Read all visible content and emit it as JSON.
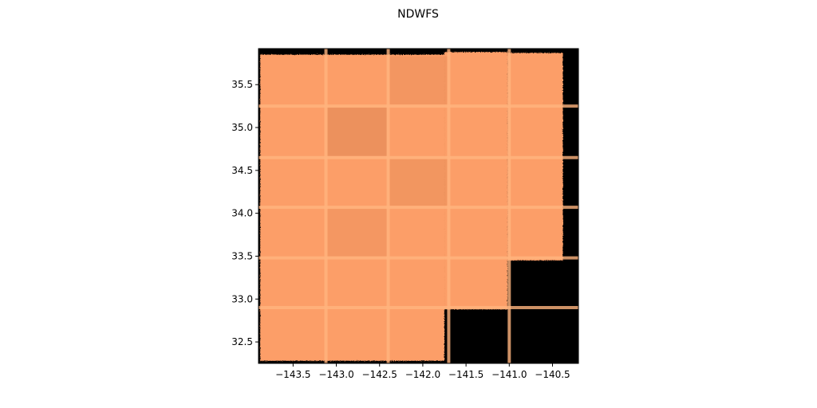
{
  "chart_data": {
    "type": "heatmap",
    "title": "NDWFS",
    "xlabel": "",
    "ylabel": "",
    "xlim": [
      -143.9,
      -140.2
    ],
    "ylim": [
      32.25,
      35.92
    ],
    "xticks": [
      -143.5,
      -143.0,
      -142.5,
      -142.0,
      -141.5,
      -141.0,
      -140.5
    ],
    "xtick_labels": [
      "−143.5",
      "−143.0",
      "−142.5",
      "−142.0",
      "−141.5",
      "−141.0",
      "−140.5"
    ],
    "yticks": [
      32.5,
      33.0,
      33.5,
      34.0,
      34.5,
      35.0,
      35.5
    ],
    "ytick_labels": [
      "32.5",
      "33.0",
      "33.5",
      "34.0",
      "34.5",
      "35.0",
      "35.5"
    ],
    "background_color": "#000000",
    "coverage_color": "#fc9e67",
    "grid": false,
    "coverage_columns": [
      {
        "x_min": -143.88,
        "x_max": -141.75,
        "y_min": 32.28,
        "y_max": 35.85
      },
      {
        "x_min": -141.75,
        "x_max": -141.02,
        "y_min": 32.88,
        "y_max": 35.88
      },
      {
        "x_min": -141.02,
        "x_max": -140.38,
        "y_min": 33.45,
        "y_max": 35.87
      }
    ],
    "tile_boundaries_x": [
      -143.12,
      -142.4,
      -141.7,
      -141.0
    ],
    "tile_boundaries_y": [
      32.9,
      33.48,
      34.07,
      34.65,
      35.25
    ]
  }
}
